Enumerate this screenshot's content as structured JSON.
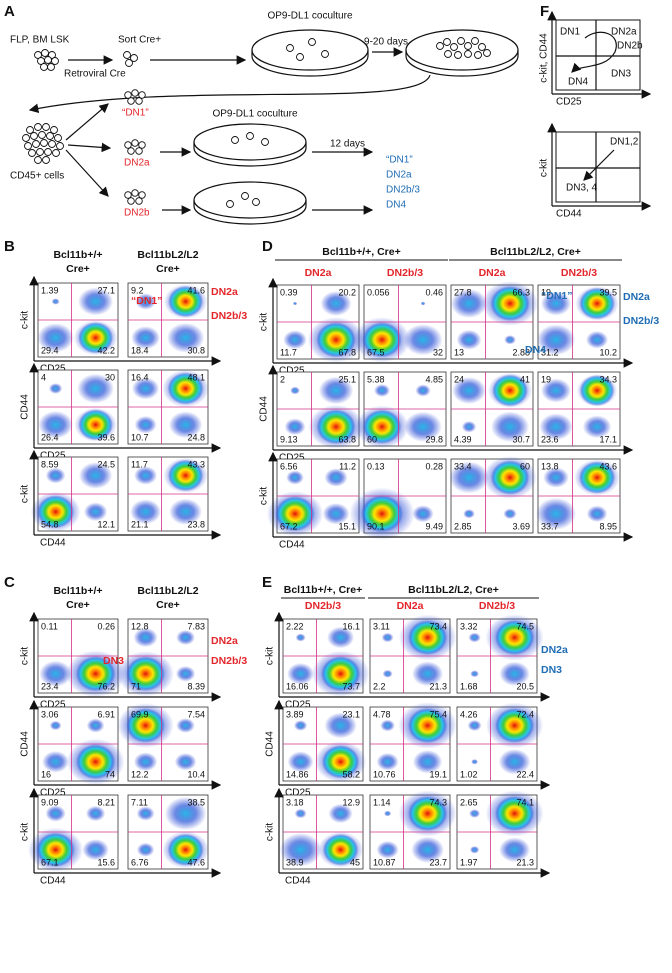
{
  "panel_a": {
    "label": "A",
    "start": "FLP, BM LSK",
    "retro": "Retroviral Cre",
    "sort": "Sort Cre+",
    "coculture1": "OP9-DL1 coculture",
    "days1": "9-20 days",
    "cd45": "CD45+ cells",
    "sorted": [
      "“DN1”",
      "DN2a",
      "DN2b"
    ],
    "coculture2": "OP9-DL1 coculture",
    "days2": "12 days",
    "outputs": [
      "“DN1”",
      "DN2a",
      "DN2b/3",
      "DN4"
    ]
  },
  "panel_f": {
    "label": "F",
    "top": {
      "regions": [
        "DN1",
        "DN2a",
        "DN2b",
        "DN3",
        "DN4"
      ],
      "y_axis": "c-kit, CD44",
      "x_axis": "CD25"
    },
    "bottom": {
      "regions": [
        "DN1,2",
        "DN3, 4"
      ],
      "y_axis": "c-kit",
      "x_axis": "CD44"
    }
  },
  "panel_b": {
    "label": "B",
    "columns": [
      [
        "Bcl11b+/+",
        "Cre+"
      ],
      [
        "Bcl11bL2/L2",
        "Cre+"
      ]
    ],
    "rows": [
      {
        "y_axis": "c-kit",
        "x_axis": "CD25",
        "plots": [
          [
            "1.39",
            "27.1",
            "29.4",
            "42.2"
          ],
          [
            "9.2",
            "41.6",
            "18.4",
            "30.8"
          ]
        ]
      },
      {
        "y_axis": "CD44",
        "x_axis": "CD25",
        "plots": [
          [
            "4",
            "30",
            "26.4",
            "39.6"
          ],
          [
            "16.4",
            "48.1",
            "10.7",
            "24.8"
          ]
        ]
      },
      {
        "y_axis": "c-kit",
        "x_axis": "CD44",
        "plots": [
          [
            "8.59",
            "24.5",
            "54.8",
            "12.1"
          ],
          [
            "11.7",
            "43.3",
            "21.1",
            "23.8"
          ]
        ]
      }
    ],
    "annotations": [
      {
        "text": "“DN1”",
        "color": "#e3262b"
      },
      {
        "text": "DN2a",
        "color": "#e3262b"
      },
      {
        "text": "DN2b/3",
        "color": "#e3262b"
      }
    ]
  },
  "panel_c": {
    "label": "C",
    "columns": [
      [
        "Bcl11b+/+",
        "Cre+"
      ],
      [
        "Bcl11bL2/L2",
        "Cre+"
      ]
    ],
    "rows": [
      {
        "y_axis": "c-kit",
        "x_axis": "CD25",
        "plots": [
          [
            "0.11",
            "0.26",
            "23.4",
            "76.2"
          ],
          [
            "12.8",
            "7.83",
            "71",
            "8.39"
          ]
        ]
      },
      {
        "y_axis": "CD44",
        "x_axis": "CD25",
        "plots": [
          [
            "3.06",
            "6.91",
            "16",
            "74"
          ],
          [
            "69.9",
            "7.54",
            "12.2",
            "10.4"
          ]
        ]
      },
      {
        "y_axis": "c-kit",
        "x_axis": "CD44",
        "plots": [
          [
            "9.09",
            "8.21",
            "67.1",
            "15.6"
          ],
          [
            "7.11",
            "38.5",
            "6.76",
            "47.6"
          ]
        ]
      }
    ],
    "annotations": [
      {
        "text": "DN3",
        "color": "#e3262b"
      },
      {
        "text": "DN2a",
        "color": "#e3262b"
      },
      {
        "text": "DN2b/3",
        "color": "#e3262b"
      }
    ]
  },
  "panel_d": {
    "label": "D",
    "groups": [
      "Bcl11b+/+, Cre+",
      "Bcl11bL2/L2, Cre+"
    ],
    "columns": [
      "DN2a",
      "DN2b/3",
      "DN2a",
      "DN2b/3"
    ],
    "column_color": "#e3262b",
    "rows": [
      {
        "y_axis": "c-kit",
        "x_axis": "CD25",
        "plots": [
          [
            "0.39",
            "20.2",
            "11.7",
            "67.8"
          ],
          [
            "0.056",
            "0.46",
            "67.5",
            "32"
          ],
          [
            "27.8",
            "66.3",
            "13",
            "2.88"
          ],
          [
            "19",
            "39.5",
            "31.2",
            "10.2"
          ]
        ]
      },
      {
        "y_axis": "CD44",
        "x_axis": "CD25",
        "plots": [
          [
            "2",
            "25.1",
            "9.13",
            "63.8"
          ],
          [
            "5.38",
            "4.85",
            "60",
            "29.8"
          ],
          [
            "24",
            "41",
            "4.39",
            "30.7"
          ],
          [
            "19",
            "34.3",
            "23.6",
            "17.1"
          ]
        ]
      },
      {
        "y_axis": "c-kit",
        "x_axis": "CD44",
        "plots": [
          [
            "6.56",
            "11.2",
            "67.2",
            "15.1"
          ],
          [
            "0.13",
            "0.28",
            "90.1",
            "9.49"
          ],
          [
            "33.4",
            "60",
            "2.85",
            "3.69"
          ],
          [
            "13.8",
            "43.6",
            "33.7",
            "8.95"
          ]
        ]
      }
    ],
    "annotations": [
      {
        "text": "“DN1”",
        "color": "#1f6db5"
      },
      {
        "text": "DN4",
        "color": "#1f6db5"
      },
      {
        "text": "DN2a",
        "color": "#1f6db5"
      },
      {
        "text": "DN2b/3",
        "color": "#1f6db5"
      }
    ]
  },
  "panel_e": {
    "label": "E",
    "groups": [
      "Bcl11b+/+, Cre+",
      "Bcl11bL2/L2, Cre+"
    ],
    "columns": [
      "DN2b/3",
      "DN2a",
      "DN2b/3"
    ],
    "column_color": "#e3262b",
    "rows": [
      {
        "y_axis": "c-kit",
        "x_axis": "CD25",
        "plots": [
          [
            "2.22",
            "16.1",
            "16.06",
            "73.7"
          ],
          [
            "3.11",
            "73.4",
            "2.2",
            "21.3"
          ],
          [
            "3.32",
            "74.5",
            "1.68",
            "20.5"
          ]
        ]
      },
      {
        "y_axis": "CD44",
        "x_axis": "CD25",
        "plots": [
          [
            "3.89",
            "23.1",
            "14.86",
            "58.2"
          ],
          [
            "4.78",
            "75.4",
            "10.76",
            "19.1"
          ],
          [
            "4.26",
            "72.4",
            "1.02",
            "22.4"
          ]
        ]
      },
      {
        "y_axis": "c-kit",
        "x_axis": "CD44",
        "plots": [
          [
            "3.18",
            "12.9",
            "38.9",
            "45"
          ],
          [
            "1.14",
            "74.3",
            "10.87",
            "23.7"
          ],
          [
            "2.65",
            "74.1",
            "1.97",
            "21.3"
          ]
        ]
      }
    ],
    "annotations": [
      {
        "text": "DN2a",
        "color": "#1f6db5"
      },
      {
        "text": "DN3",
        "color": "#1f6db5"
      }
    ]
  }
}
